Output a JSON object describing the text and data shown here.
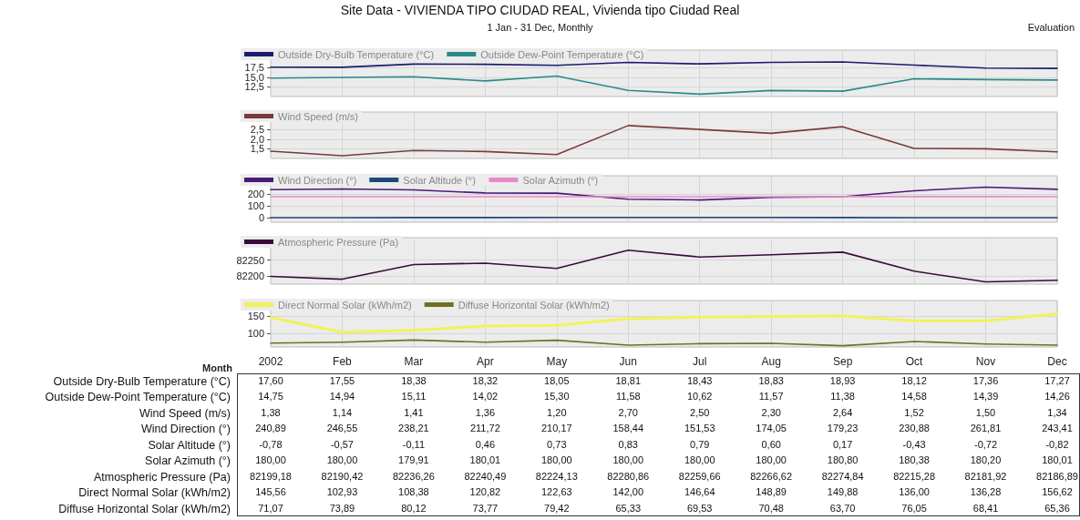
{
  "chart_data": [
    {
      "type": "line",
      "title": "Site Data - VIVIENDA TIPO CIUDAD REAL, Vivienda tipo Ciudad Real",
      "subtitle": "1 Jan - 31 Dec, Monthly",
      "annotations": [
        "Evaluation"
      ],
      "categories": [
        "2002",
        "Feb",
        "Mar",
        "Apr",
        "May",
        "Jun",
        "Jul",
        "Aug",
        "Sep",
        "Oct",
        "Nov",
        "Dec"
      ],
      "series": [
        {
          "name": "Outside Dry-Bulb Temperature (°C)",
          "color": "#1a1a6e",
          "values": [
            17.6,
            17.55,
            18.38,
            18.32,
            18.05,
            18.81,
            18.43,
            18.83,
            18.93,
            18.12,
            17.36,
            17.27
          ],
          "value_labels": [
            "17,60",
            "17,55",
            "18,38",
            "18,32",
            "18,05",
            "18,81",
            "18,43",
            "18,83",
            "18,93",
            "18,12",
            "17,36",
            "17,27"
          ]
        },
        {
          "name": "Outside Dew-Point Temperature (°C)",
          "color": "#2a8a8a",
          "values": [
            14.75,
            14.94,
            15.11,
            14.02,
            15.3,
            11.58,
            10.62,
            11.57,
            11.38,
            14.58,
            14.39,
            14.26
          ],
          "value_labels": [
            "14,75",
            "14,94",
            "15,11",
            "14,02",
            "15,30",
            "11,58",
            "10,62",
            "11,57",
            "11,38",
            "14,58",
            "14,39",
            "14,26"
          ]
        }
      ],
      "ylim": [
        10,
        22
      ],
      "yticks": [
        {
          "value": 12.5,
          "label": "12,5"
        },
        {
          "value": 15,
          "label": "15,0"
        },
        {
          "value": 17.5,
          "label": "17,5"
        }
      ],
      "grid": true,
      "legend": "top left",
      "marker": "none",
      "line_style": "solid",
      "tick_labels": "y"
    },
    {
      "type": "line",
      "categories": [
        "2002",
        "Feb",
        "Mar",
        "Apr",
        "May",
        "Jun",
        "Jul",
        "Aug",
        "Sep",
        "Oct",
        "Nov",
        "Dec"
      ],
      "series": [
        {
          "name": "Wind Speed (m/s)",
          "color": "#7a3a3a",
          "values": [
            1.38,
            1.14,
            1.41,
            1.36,
            1.2,
            2.7,
            2.5,
            2.3,
            2.64,
            1.52,
            1.5,
            1.34
          ],
          "value_labels": [
            "1,38",
            "1,14",
            "1,41",
            "1,36",
            "1,20",
            "2,70",
            "2,50",
            "2,30",
            "2,64",
            "1,52",
            "1,50",
            "1,34"
          ]
        }
      ],
      "ylim": [
        1,
        3.4
      ],
      "yticks": [
        {
          "value": 1.5,
          "label": "1,5"
        },
        {
          "value": 2,
          "label": "2,0"
        },
        {
          "value": 2.5,
          "label": "2,5"
        }
      ],
      "grid": true,
      "legend": "top left",
      "marker": "none",
      "line_style": "solid",
      "tick_labels": "y"
    },
    {
      "type": "line",
      "categories": [
        "2002",
        "Feb",
        "Mar",
        "Apr",
        "May",
        "Jun",
        "Jul",
        "Aug",
        "Sep",
        "Oct",
        "Nov",
        "Dec"
      ],
      "series": [
        {
          "name": "Wind Direction (°)",
          "color": "#4a1a7a",
          "values": [
            240.89,
            246.55,
            238.21,
            211.72,
            210.17,
            158.44,
            151.53,
            174.05,
            179.23,
            230.88,
            261.81,
            243.41
          ],
          "value_labels": [
            "240,89",
            "246,55",
            "238,21",
            "211,72",
            "210,17",
            "158,44",
            "151,53",
            "174,05",
            "179,23",
            "230,88",
            "261,81",
            "243,41"
          ]
        },
        {
          "name": "Solar Altitude (°)",
          "color": "#1a4a7a",
          "values": [
            -0.78,
            -0.57,
            -0.11,
            0.46,
            0.73,
            0.83,
            0.79,
            0.6,
            0.17,
            -0.43,
            -0.72,
            -0.82
          ],
          "value_labels": [
            "-0,78",
            "-0,57",
            "-0,11",
            "0,46",
            "0,73",
            "0,83",
            "0,79",
            "0,60",
            "0,17",
            "-0,43",
            "-0,72",
            "-0,82"
          ]
        },
        {
          "name": "Solar Azimuth (°)",
          "color": "#e88ac8",
          "values": [
            180.0,
            180.0,
            179.91,
            180.01,
            180.0,
            180.0,
            180.0,
            180.0,
            180.8,
            180.38,
            180.2,
            180.01
          ],
          "value_labels": [
            "180,00",
            "180,00",
            "179,91",
            "180,01",
            "180,00",
            "180,00",
            "180,00",
            "180,00",
            "180,80",
            "180,38",
            "180,20",
            "180,01"
          ]
        }
      ],
      "ylim": [
        -40,
        360
      ],
      "yticks": [
        0,
        100,
        200
      ],
      "grid": true,
      "legend": "top left",
      "marker": "none",
      "line_style": "solid",
      "tick_labels": "y"
    },
    {
      "type": "line",
      "categories": [
        "2002",
        "Feb",
        "Mar",
        "Apr",
        "May",
        "Jun",
        "Jul",
        "Aug",
        "Sep",
        "Oct",
        "Nov",
        "Dec"
      ],
      "series": [
        {
          "name": "Atmospheric Pressure (Pa)",
          "color": "#3a0a3a",
          "values": [
            82199.18,
            82190.42,
            82236.26,
            82240.49,
            82224.13,
            82280.86,
            82259.66,
            82266.62,
            82274.84,
            82215.28,
            82181.92,
            82186.89
          ],
          "value_labels": [
            "82199,18",
            "82190,42",
            "82236,26",
            "82240,49",
            "82224,13",
            "82280,86",
            "82259,66",
            "82266,62",
            "82274,84",
            "82215,28",
            "82181,92",
            "82186,89"
          ]
        }
      ],
      "ylim": [
        82175,
        82320
      ],
      "yticks": [
        82200,
        82250
      ],
      "grid": true,
      "legend": "top left",
      "marker": "none",
      "line_style": "solid",
      "tick_labels": "y"
    },
    {
      "type": "line",
      "xlabel": "Month",
      "categories": [
        "2002",
        "Feb",
        "Mar",
        "Apr",
        "May",
        "Jun",
        "Jul",
        "Aug",
        "Sep",
        "Oct",
        "Nov",
        "Dec"
      ],
      "series": [
        {
          "name": "Direct Normal Solar (kWh/m2)",
          "color": "#f2f25a",
          "values": [
            145.56,
            102.93,
            108.38,
            120.82,
            122.63,
            142.0,
            146.64,
            148.89,
            149.88,
            136.0,
            136.28,
            156.62
          ],
          "value_labels": [
            "145,56",
            "102,93",
            "108,38",
            "120,82",
            "122,63",
            "142,00",
            "146,64",
            "148,89",
            "149,88",
            "136,00",
            "136,28",
            "156,62"
          ]
        },
        {
          "name": "Diffuse Horizontal Solar (kWh/m2)",
          "color": "#707020",
          "values": [
            71.07,
            73.89,
            80.12,
            73.77,
            79.42,
            65.33,
            69.53,
            70.48,
            63.7,
            76.05,
            68.41,
            65.36
          ],
          "value_labels": [
            "71,07",
            "73,89",
            "80,12",
            "73,77",
            "79,42",
            "65,33",
            "69,53",
            "70,48",
            "63,70",
            "76,05",
            "68,41",
            "65,36"
          ]
        }
      ],
      "ylim": [
        60,
        195
      ],
      "yticks": [
        100,
        150
      ],
      "grid": true,
      "legend": "top left",
      "marker": "none",
      "line_style": "solid"
    }
  ]
}
